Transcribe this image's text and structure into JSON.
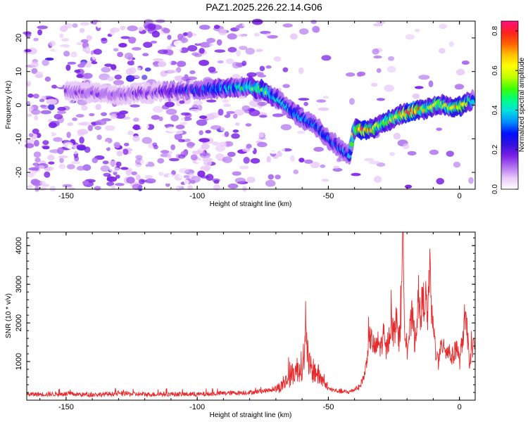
{
  "figure": {
    "title": "PAZ1.2025.226.22.14.G06"
  },
  "chart_data": [
    {
      "type": "heatmap",
      "xlabel": "Height of straight line (km)",
      "ylabel": "Frequency (Hz)",
      "xlim": [
        -165,
        6
      ],
      "ylim": [
        -25,
        25
      ],
      "xticks": [
        -150,
        -100,
        -50,
        0
      ],
      "yticks": [
        -20,
        -10,
        0,
        10,
        20
      ],
      "colorbar": {
        "label": "Normalized spectral amplitude",
        "range": [
          0,
          0.85
        ],
        "ticks": [
          0.0,
          0.2,
          0.4,
          0.6,
          0.8
        ],
        "colors": [
          "#ffffff",
          "#e8c8f8",
          "#b070f0",
          "#7a20e6",
          "#3010e0",
          "#0010ff",
          "#0090ff",
          "#00e0e0",
          "#00ff80",
          "#40ff00",
          "#c0ff00",
          "#ffff00",
          "#ffc000",
          "#ff6000",
          "#ff2020",
          "#ff1080"
        ]
      },
      "ridge": {
        "x": [
          -145,
          -130,
          -115,
          -100,
          -90,
          -80,
          -75,
          -70,
          -65,
          -60,
          -55,
          -50,
          -45,
          -42,
          -40,
          -37,
          -33,
          -28,
          -23,
          -18,
          -12,
          -8,
          -4,
          0,
          5
        ],
        "y": [
          4,
          3,
          4,
          4.5,
          5,
          5.5,
          4.5,
          2,
          -1,
          -4,
          -6,
          -10,
          -13,
          -15,
          -7,
          -7.5,
          -7,
          -5,
          -3,
          -2,
          -1,
          0.5,
          -0.5,
          -0.5,
          1.5
        ],
        "peak": [
          0.15,
          0.15,
          0.2,
          0.3,
          0.4,
          0.45,
          0.5,
          0.4,
          0.35,
          0.35,
          0.3,
          0.3,
          0.3,
          0.35,
          0.5,
          0.8,
          0.6,
          0.55,
          0.6,
          0.8,
          0.55,
          0.6,
          0.5,
          0.7,
          0.4
        ]
      }
    },
    {
      "type": "line",
      "xlabel": "Height of straight line (km)",
      "ylabel": "SNR (10 * v/v)",
      "xlim": [
        -165,
        6
      ],
      "ylim": [
        0,
        4350
      ],
      "xticks": [
        -150,
        -100,
        -50,
        0
      ],
      "yticks": [
        1000,
        2000,
        3000,
        4000
      ],
      "series": [
        {
          "color": "#e8282a",
          "x": [
            -165,
            -150,
            -140,
            -130,
            -120,
            -110,
            -100,
            -90,
            -80,
            -72,
            -68,
            -64,
            -62,
            -60,
            -58.5,
            -57,
            -55,
            -52,
            -50,
            -48,
            -45,
            -42,
            -40,
            -38,
            -36,
            -35,
            -34,
            -33,
            -32,
            -31,
            -30,
            -29,
            -28,
            -27,
            -26,
            -25,
            -24,
            -23,
            -22,
            -21.5,
            -21,
            -20.5,
            -20,
            -19,
            -18,
            -17,
            -16,
            -15,
            -14,
            -13,
            -12,
            -11.5,
            -11,
            -10.5,
            -10,
            -9,
            -8,
            -7,
            -6,
            -5,
            -4,
            -3,
            -2,
            -1,
            0,
            1,
            2,
            3,
            4,
            5,
            6
          ],
          "y": [
            150,
            160,
            140,
            170,
            150,
            160,
            150,
            180,
            200,
            260,
            350,
            650,
            800,
            900,
            1450,
            800,
            750,
            500,
            300,
            260,
            220,
            210,
            280,
            350,
            700,
            1300,
            1650,
            1450,
            1300,
            1500,
            1350,
            1700,
            1250,
            1600,
            2000,
            1700,
            2100,
            1500,
            2700,
            4300,
            2200,
            1700,
            1300,
            1750,
            2200,
            1500,
            2350,
            2300,
            2500,
            2700,
            2100,
            3450,
            3000,
            2050,
            1900,
            1250,
            950,
            1350,
            1550,
            1250,
            1300,
            1100,
            1200,
            1450,
            950,
            1500,
            2100,
            1700,
            900,
            1400,
            1300
          ]
        }
      ]
    }
  ]
}
